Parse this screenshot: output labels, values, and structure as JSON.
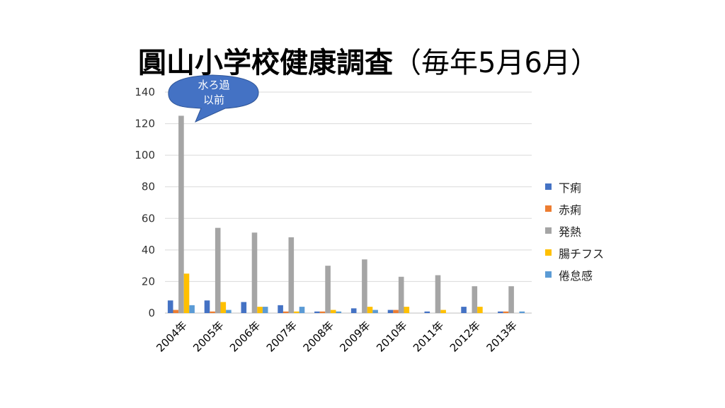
{
  "chart_data": {
    "type": "bar",
    "title": "圓山小学校健康調査",
    "subtitle": "（毎年5月6月）",
    "categories": [
      "2004年",
      "2005年",
      "2006年",
      "2007年",
      "2008年",
      "2009年",
      "2010年",
      "2011年",
      "2012年",
      "2013年"
    ],
    "ylim": [
      0,
      140
    ],
    "yticks": [
      0,
      20,
      40,
      60,
      80,
      100,
      120,
      140
    ],
    "grid": true,
    "legend_position": "right",
    "series": [
      {
        "name": "下痢",
        "color": "#4472C4",
        "values": [
          8,
          8,
          7,
          5,
          1,
          3,
          2,
          1,
          4,
          1
        ]
      },
      {
        "name": "赤痢",
        "color": "#ED7D31",
        "values": [
          2,
          1,
          0,
          1,
          1,
          0,
          2,
          0,
          0,
          1
        ]
      },
      {
        "name": "発熱",
        "color": "#A5A5A5",
        "values": [
          125,
          54,
          51,
          48,
          30,
          34,
          23,
          24,
          17,
          17
        ]
      },
      {
        "name": "腸チフス",
        "color": "#FFC000",
        "values": [
          25,
          7,
          4,
          1,
          2,
          4,
          4,
          2,
          4,
          0
        ]
      },
      {
        "name": "倦怠感",
        "color": "#5B9BD5",
        "values": [
          5,
          2,
          4,
          4,
          1,
          2,
          0,
          0,
          0,
          1
        ]
      }
    ],
    "annotation": {
      "lines": [
        "水ろ過",
        "以前"
      ],
      "target_category": "2004年",
      "color": "#4472C4"
    }
  }
}
